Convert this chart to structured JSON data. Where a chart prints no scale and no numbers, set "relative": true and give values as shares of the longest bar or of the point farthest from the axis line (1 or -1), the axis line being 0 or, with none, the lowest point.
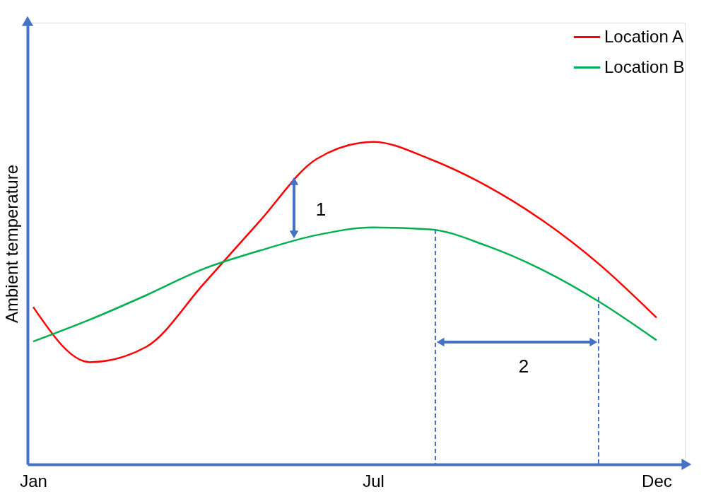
{
  "chart_data": {
    "type": "line",
    "relative": true,
    "ylabel": "Ambient temperature",
    "categories": [
      "Jan",
      null,
      null,
      null,
      null,
      null,
      "Jul",
      null,
      null,
      null,
      null,
      "Dec"
    ],
    "series": [
      {
        "name": "Location A",
        "color": "#ff0000",
        "values": [
          0.488,
          0.317,
          0.365,
          0.558,
          0.755,
          0.947,
          1.0,
          0.947,
          0.864,
          0.755,
          0.619,
          0.455
        ]
      },
      {
        "name": "Location B",
        "color": "#00b050",
        "values": [
          0.381,
          0.449,
          0.525,
          0.606,
          0.663,
          0.711,
          0.735,
          0.729,
          0.678,
          0.602,
          0.503,
          0.385
        ]
      }
    ],
    "annotations": [
      "1",
      "2"
    ],
    "grid": false,
    "legend": "top right",
    "marker": "none",
    "line_style": "solid",
    "tick_labels": "x"
  }
}
